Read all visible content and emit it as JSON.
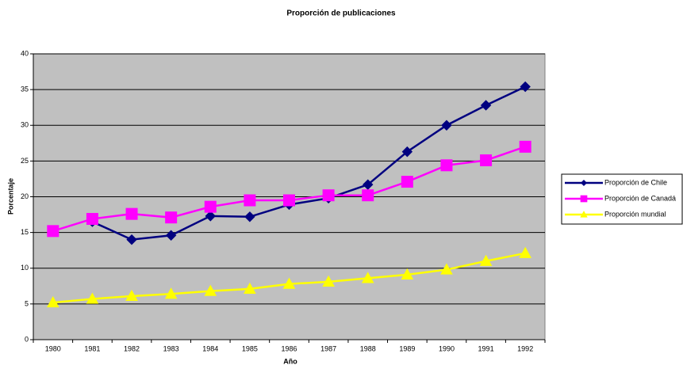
{
  "chart_data": {
    "type": "line",
    "title": "Proporción de publicaciones",
    "x_label": "Año",
    "y_label": "Porcentaje",
    "categories": [
      "1980",
      "1981",
      "1982",
      "1983",
      "1984",
      "1985",
      "1986",
      "1987",
      "1988",
      "1989",
      "1990",
      "1991",
      "1992"
    ],
    "series": [
      {
        "name": "Proporción de Chile",
        "color": "#000080",
        "marker": "diamond",
        "values": [
          null,
          16.5,
          14.0,
          14.6,
          17.3,
          17.2,
          18.9,
          19.8,
          21.7,
          26.3,
          30.0,
          32.8,
          35.4
        ]
      },
      {
        "name": "Proporción de Canadá",
        "color": "#ff00ff",
        "marker": "square",
        "values": [
          15.2,
          16.9,
          17.6,
          17.1,
          18.6,
          19.5,
          19.5,
          20.2,
          20.2,
          22.1,
          24.4,
          25.1,
          27.0
        ]
      },
      {
        "name": "Proporción mundial",
        "color": "#ffff00",
        "marker": "triangle",
        "values": [
          5.2,
          5.7,
          6.1,
          6.4,
          6.8,
          7.1,
          7.8,
          8.1,
          8.6,
          9.1,
          9.8,
          11.0,
          12.1
        ]
      }
    ],
    "ylim": [
      0,
      40
    ],
    "yticks": [
      0,
      5,
      10,
      15,
      20,
      25,
      30,
      35,
      40
    ],
    "grid": true,
    "plot_background": "#c0c0c0",
    "legend": "right"
  }
}
